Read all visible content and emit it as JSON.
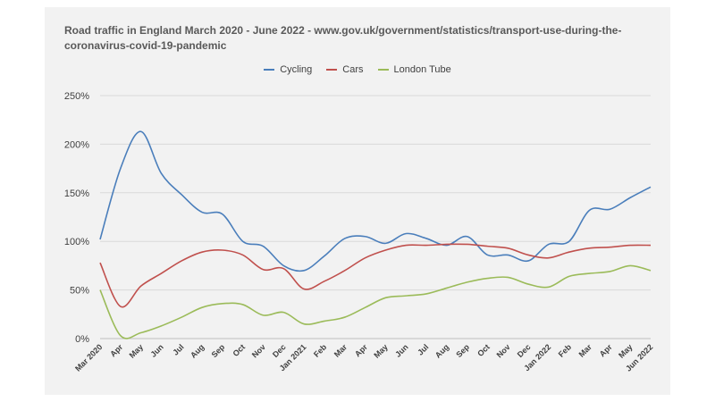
{
  "chart_data": {
    "type": "line",
    "title": "Road traffic in England March 2020 - June 2022 - www.gov.uk/government/statistics/transport-use-during-the-coronavirus-covid-19-pandemic",
    "xlabel": "",
    "ylabel": "",
    "ylim": [
      0,
      250
    ],
    "yticks": [
      0,
      50,
      100,
      150,
      200,
      250
    ],
    "ytick_suffix": "%",
    "grid": "horizontal",
    "legend_position": "top",
    "categories": [
      "Mar 2020",
      "Apr",
      "May",
      "Jun",
      "Jul",
      "Aug",
      "Sep",
      "Oct",
      "Nov",
      "Dec",
      "Jan 2021",
      "Feb",
      "Mar",
      "Apr",
      "May",
      "Jun",
      "Jul",
      "Aug",
      "Sep",
      "Oct",
      "Nov",
      "Dec",
      "Jan 2022",
      "Feb",
      "Mar",
      "Apr",
      "May",
      "Jun 2022"
    ],
    "series": [
      {
        "name": "Cycling",
        "color": "#4a7ebb",
        "values": [
          102,
          175,
          213,
          170,
          148,
          130,
          128,
          100,
          95,
          75,
          70,
          85,
          103,
          105,
          98,
          108,
          103,
          96,
          105,
          86,
          86,
          80,
          97,
          100,
          132,
          133,
          145,
          156
        ]
      },
      {
        "name": "Cars",
        "color": "#c0504d",
        "values": [
          78,
          33,
          54,
          67,
          80,
          89,
          91,
          86,
          71,
          72,
          51,
          59,
          70,
          83,
          91,
          96,
          96,
          97,
          97,
          95,
          93,
          86,
          83,
          89,
          93,
          94,
          96,
          96
        ]
      },
      {
        "name": "London Tube",
        "color": "#9bbb59",
        "values": [
          50,
          3,
          6,
          13,
          22,
          32,
          36,
          35,
          24,
          27,
          15,
          18,
          22,
          32,
          42,
          44,
          46,
          52,
          58,
          62,
          63,
          56,
          53,
          64,
          67,
          69,
          75,
          70
        ]
      }
    ]
  }
}
